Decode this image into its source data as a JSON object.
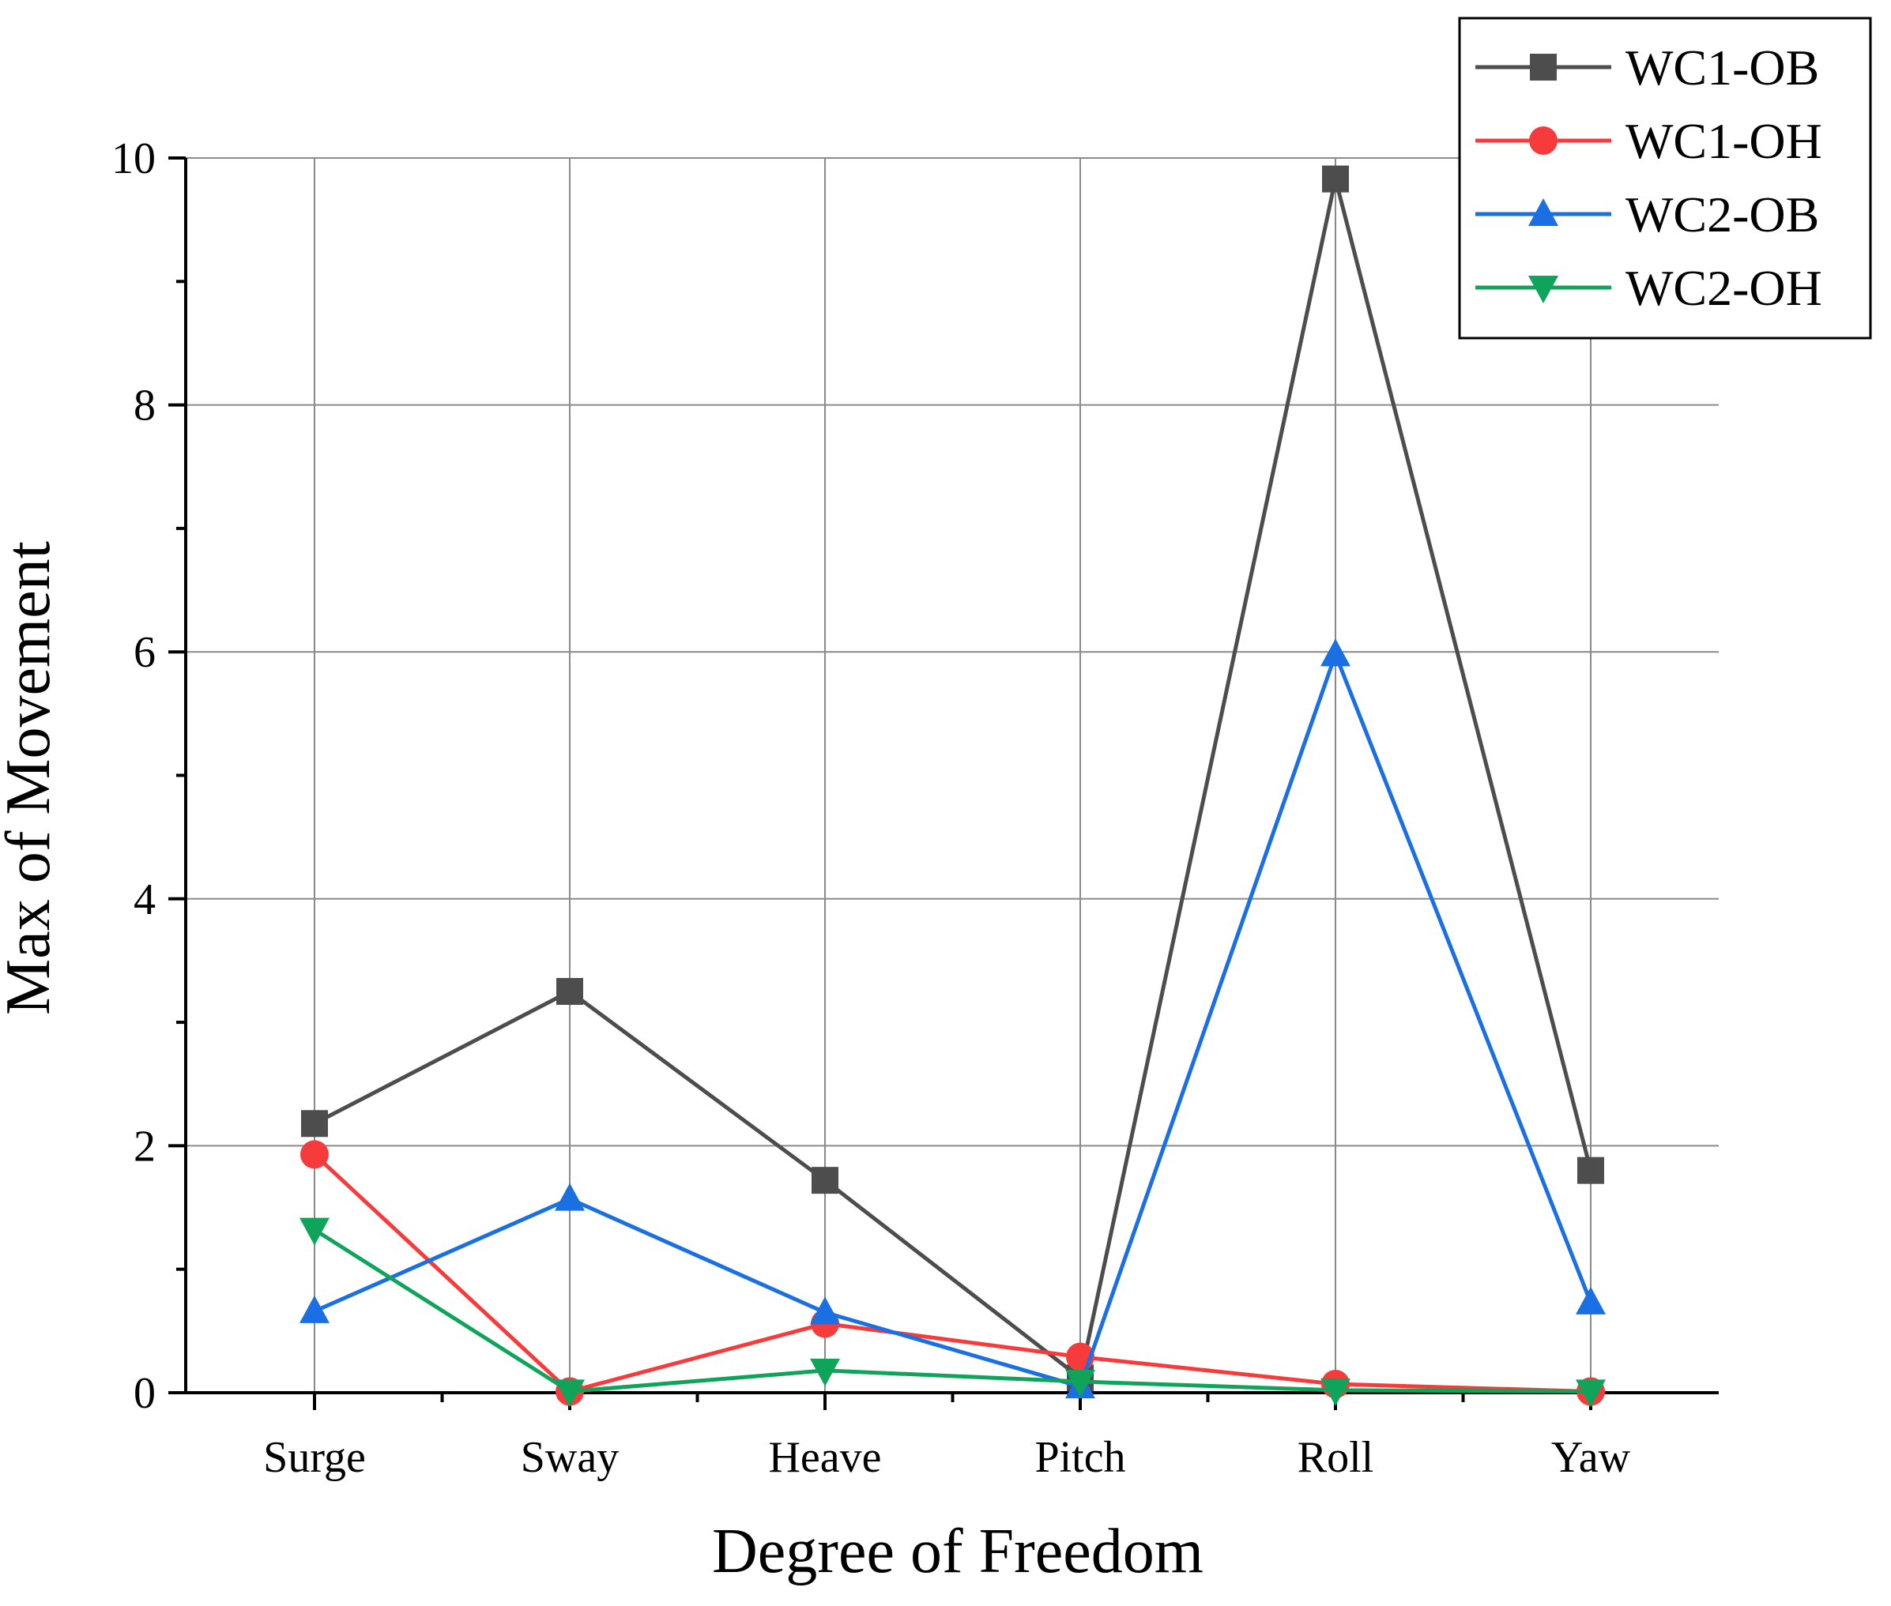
{
  "chart_data": {
    "type": "line",
    "xlabel": "Degree of Freedom",
    "ylabel": "Max of Movement",
    "categories": [
      "Surge",
      "Sway",
      "Heave",
      "Pitch",
      "Roll",
      "Yaw"
    ],
    "ylim": [
      0,
      10
    ],
    "yticks": [
      "0",
      "2",
      "4",
      "6",
      "8",
      "10"
    ],
    "grid": true,
    "legend_position": "top-right",
    "series": [
      {
        "name": "WC1-OB",
        "color": "#4d4d4d",
        "marker": "square",
        "values": [
          2.18,
          3.25,
          1.72,
          0.12,
          9.83,
          1.8
        ]
      },
      {
        "name": "WC1-OH",
        "color": "#f53b3b",
        "marker": "circle",
        "values": [
          1.93,
          0.01,
          0.56,
          0.29,
          0.07,
          0.01
        ]
      },
      {
        "name": "WC2-OB",
        "color": "#1a6fe3",
        "marker": "triangle-up",
        "values": [
          0.66,
          1.57,
          0.65,
          0.05,
          5.98,
          0.73
        ]
      },
      {
        "name": "WC2-OH",
        "color": "#10a35a",
        "marker": "triangle-down",
        "values": [
          1.32,
          0.01,
          0.18,
          0.09,
          0.02,
          0.01
        ]
      }
    ]
  }
}
